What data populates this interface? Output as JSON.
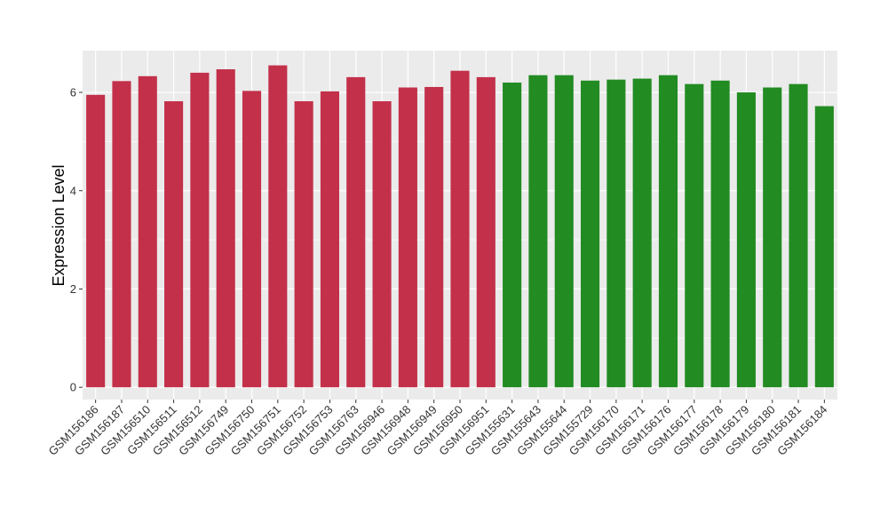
{
  "chart_data": {
    "type": "bar",
    "title": "",
    "xlabel": "",
    "ylabel": "Expression Level",
    "ylim": [
      -0.25,
      6.85
    ],
    "yticks": [
      0,
      2,
      4,
      6
    ],
    "grid": true,
    "legend": "none",
    "panel_background": "#EBEBEB",
    "grid_color": "#FFFFFF",
    "categories": [
      "GSM156186",
      "GSM156187",
      "GSM156510",
      "GSM156511",
      "GSM156512",
      "GSM156749",
      "GSM156750",
      "GSM156751",
      "GSM156752",
      "GSM156753",
      "GSM156763",
      "GSM156946",
      "GSM156948",
      "GSM156949",
      "GSM156950",
      "GSM156951",
      "GSM155631",
      "GSM155643",
      "GSM155644",
      "GSM155729",
      "GSM156170",
      "GSM156171",
      "GSM156176",
      "GSM156177",
      "GSM156178",
      "GSM156179",
      "GSM156180",
      "GSM156181",
      "GSM156184"
    ],
    "values": [
      5.95,
      6.23,
      6.33,
      5.82,
      6.4,
      6.47,
      6.03,
      6.55,
      5.82,
      6.02,
      6.31,
      5.82,
      6.1,
      6.11,
      6.44,
      6.31,
      6.2,
      6.35,
      6.35,
      6.24,
      6.26,
      6.28,
      6.35,
      6.17,
      6.24,
      6.0,
      6.1,
      6.17,
      5.72
    ],
    "groups": [
      {
        "color": "#C3304A",
        "count": 16
      },
      {
        "color": "#228B22",
        "count": 13
      }
    ]
  }
}
